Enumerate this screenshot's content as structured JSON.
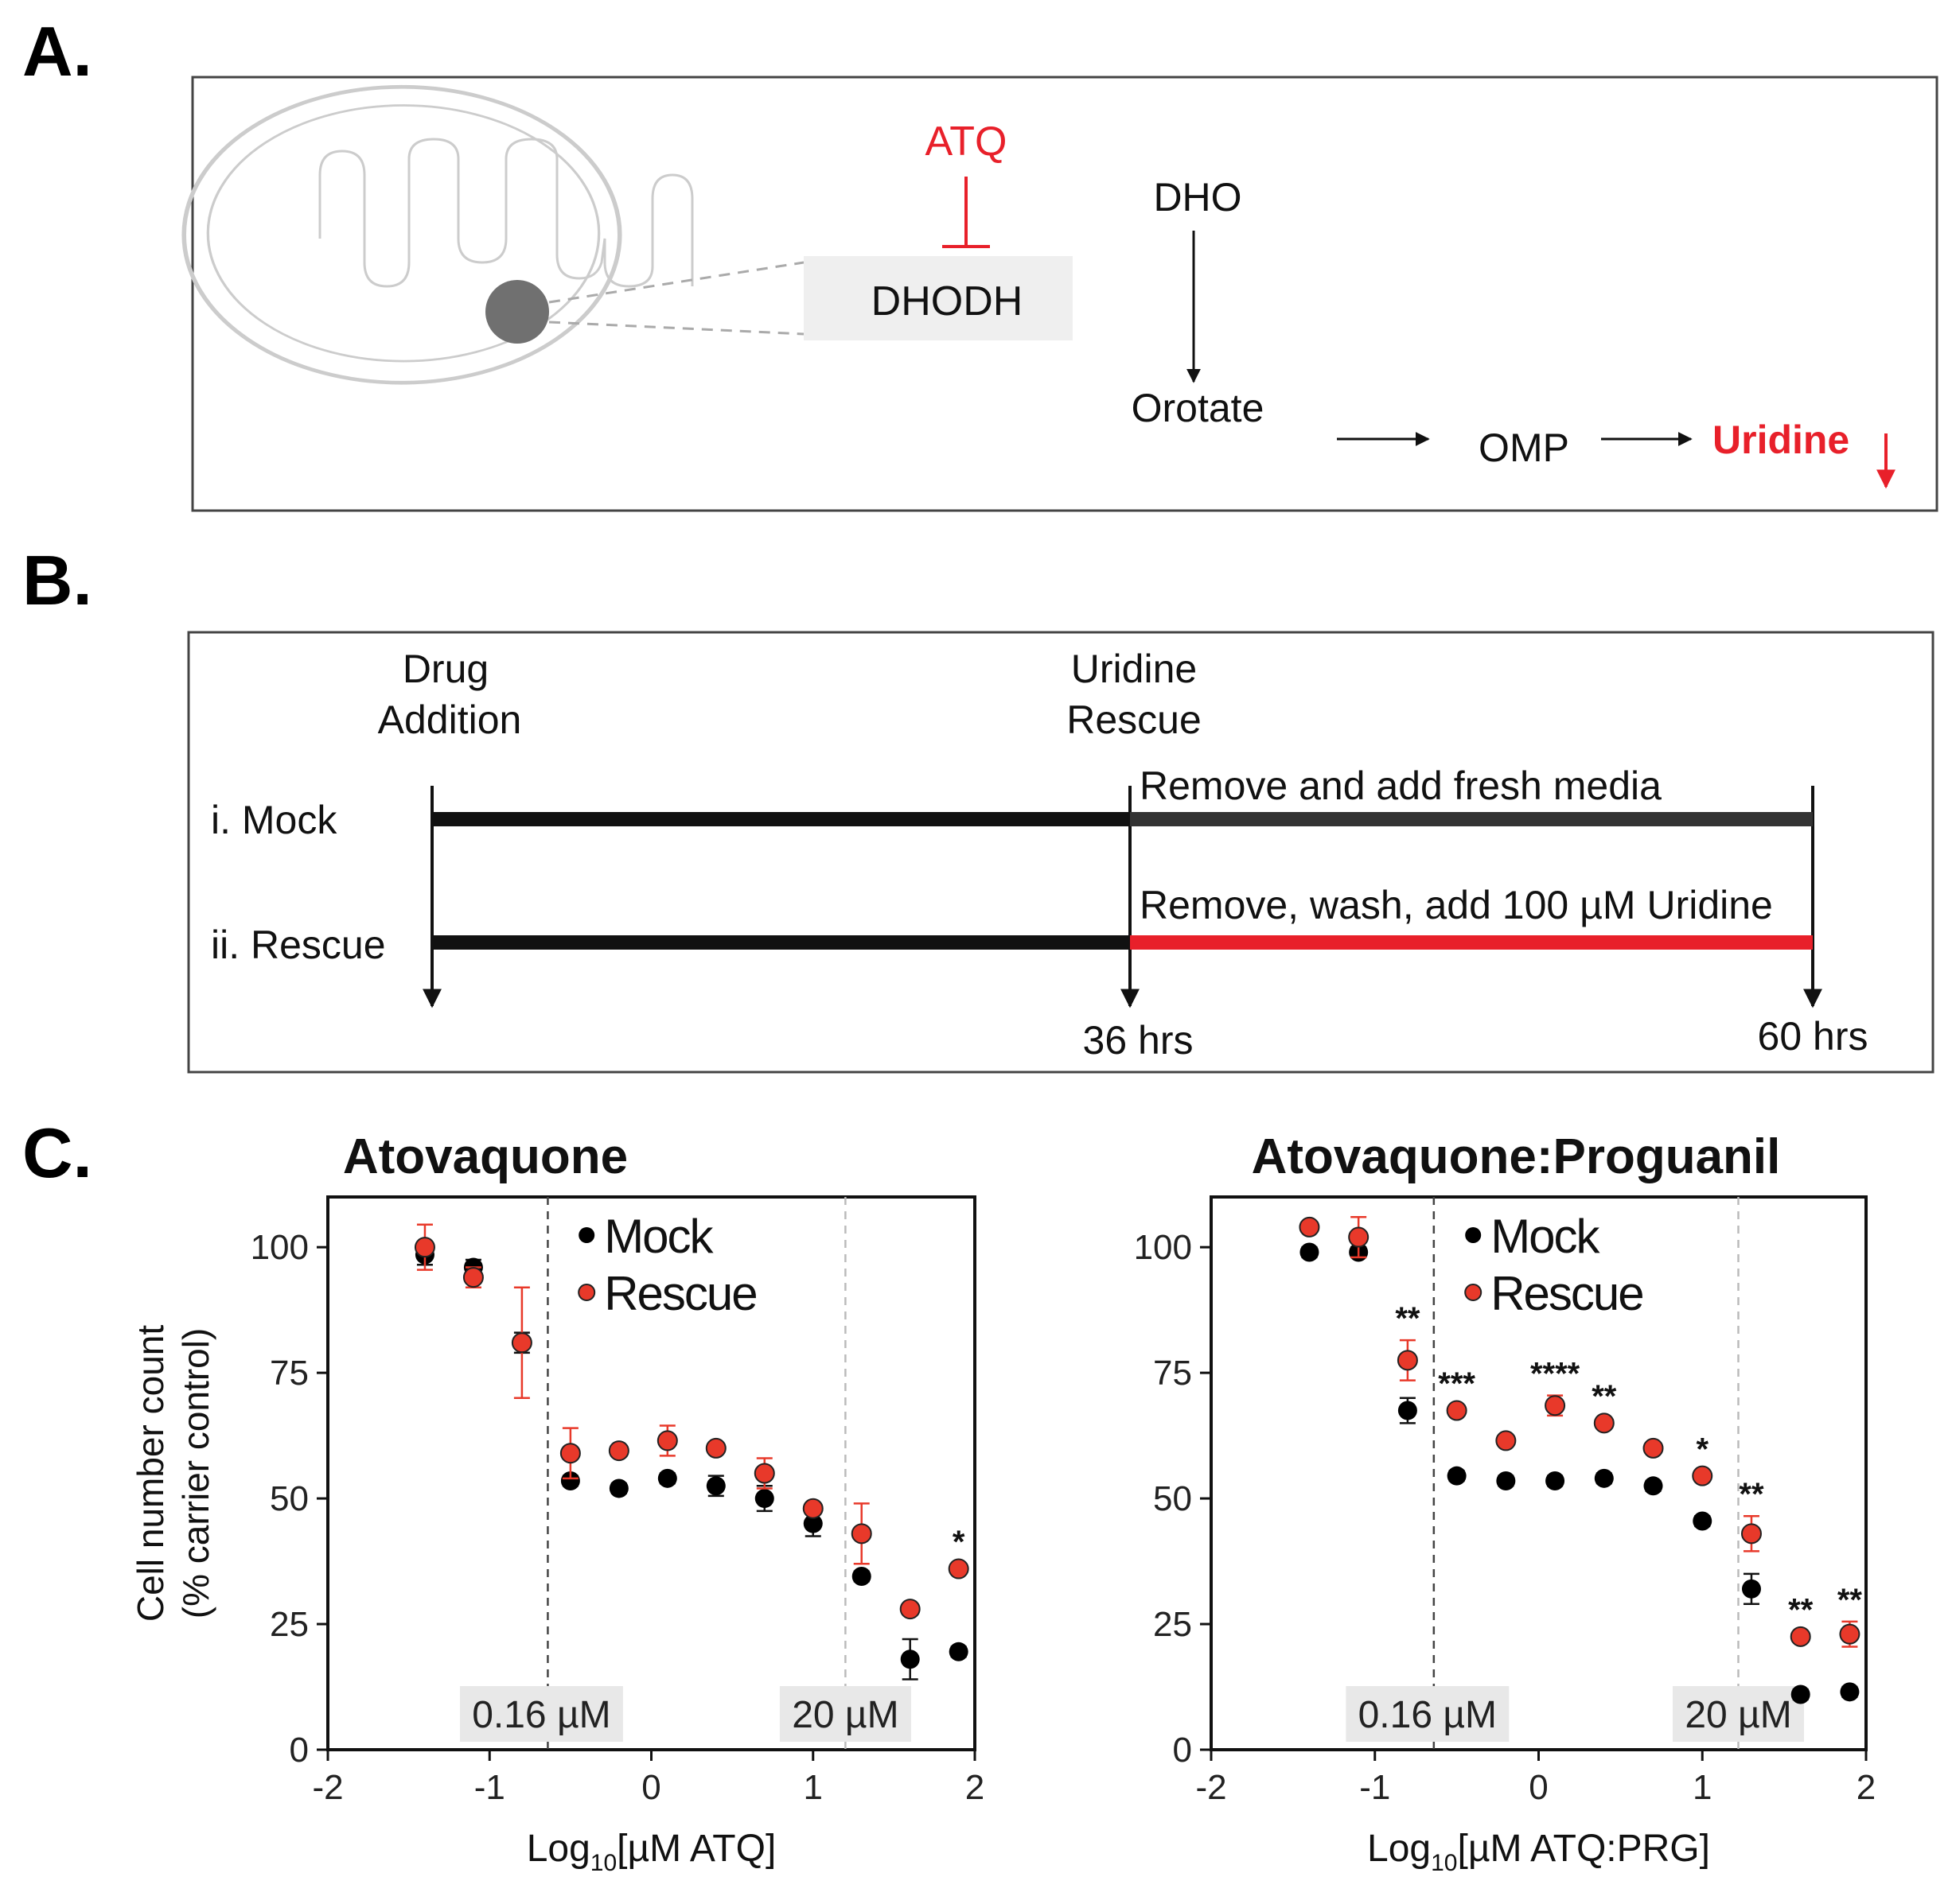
{
  "panels": {
    "a_label": "A.",
    "b_label": "B.",
    "c_label": "C."
  },
  "pathway": {
    "inhibitor": "ATQ",
    "enzyme": "DHODH",
    "substrate": "DHO",
    "product": "Orotate",
    "intermediate": "OMP",
    "end_product": "Uridine",
    "colors": {
      "inhibitor": "#e8202a",
      "end_product": "#e8202a",
      "enzyme_box": "#efefef",
      "mito_outline": "#c8c8c8",
      "mito_dot": "#707070"
    }
  },
  "timeline": {
    "drug_addition": [
      "Drug",
      "Addition"
    ],
    "uridine_rescue": [
      "Uridine",
      "Rescue"
    ],
    "mock_label": "i. Mock",
    "rescue_label": "ii. Rescue",
    "mock_text": "Remove and add fresh media",
    "rescue_text": "Remove, wash, add 100 µM Uridine",
    "t1": "36 hrs",
    "t2": "60 hrs",
    "colors": {
      "mock_bar": "#333333",
      "rescue_bar": "#e8202a"
    }
  },
  "chart_data": [
    {
      "type": "scatter",
      "title": "Atovaquone",
      "xlabel_prefix": "Log",
      "xlabel_sub": "10",
      "xlabel_suffix": "[µM ATQ]",
      "ylabel": [
        "Cell number count",
        "(% carrier control)"
      ],
      "xlim": [
        -2,
        2
      ],
      "ylim": [
        0,
        110
      ],
      "xticks": [
        -2,
        -1,
        0,
        1,
        2
      ],
      "yticks": [
        0,
        25,
        50,
        75,
        100
      ],
      "vlines": [
        {
          "x": -0.64,
          "label": "0.16 µM",
          "style": "dark"
        },
        {
          "x": 1.2,
          "label": "20 µM",
          "style": "light"
        }
      ],
      "legend": {
        "position": "top-right"
      },
      "series": [
        {
          "name": "Mock",
          "color": "#000000",
          "points": [
            [
              -1.4,
              98.5,
              2
            ],
            [
              -1.1,
              96,
              1.5
            ],
            [
              -0.8,
              81,
              2
            ],
            [
              -0.5,
              53.5,
              1
            ],
            [
              -0.2,
              52,
              1
            ],
            [
              0.1,
              54,
              1
            ],
            [
              0.4,
              52.5,
              2
            ],
            [
              0.7,
              50,
              2.5
            ],
            [
              1.0,
              45,
              2.5
            ],
            [
              1.3,
              34.5,
              1
            ],
            [
              1.6,
              18,
              4
            ],
            [
              1.9,
              19.5,
              1
            ]
          ]
        },
        {
          "name": "Rescue",
          "color": "#e8392a",
          "points": [
            [
              -1.4,
              100,
              4.5
            ],
            [
              -1.1,
              94,
              2
            ],
            [
              -0.8,
              81,
              11
            ],
            [
              -0.5,
              59,
              5
            ],
            [
              -0.2,
              59.5,
              1
            ],
            [
              0.1,
              61.5,
              3
            ],
            [
              0.4,
              60,
              1
            ],
            [
              0.7,
              55,
              3
            ],
            [
              1.0,
              48,
              1
            ],
            [
              1.3,
              43,
              6
            ],
            [
              1.6,
              28,
              1
            ],
            [
              1.9,
              36,
              1
            ]
          ]
        }
      ],
      "annotations": [
        {
          "x": 1.9,
          "text": "*"
        }
      ]
    },
    {
      "type": "scatter",
      "title": "Atovaquone:Proguanil",
      "xlabel_prefix": "Log",
      "xlabel_sub": "10",
      "xlabel_suffix": "[µM ATQ:PRG]",
      "xlim": [
        -2,
        2
      ],
      "ylim": [
        0,
        110
      ],
      "xticks": [
        -2,
        -1,
        0,
        1,
        2
      ],
      "yticks": [
        0,
        25,
        50,
        75,
        100
      ],
      "vlines": [
        {
          "x": -0.64,
          "label": "0.16 µM",
          "style": "dark"
        },
        {
          "x": 1.22,
          "label": "20 µM",
          "style": "light"
        }
      ],
      "legend": {
        "position": "top-right"
      },
      "series": [
        {
          "name": "Mock",
          "color": "#000000",
          "points": [
            [
              -1.4,
              99,
              1
            ],
            [
              -1.1,
              99,
              1
            ],
            [
              -0.8,
              67.5,
              2.5
            ],
            [
              -0.5,
              54.5,
              1
            ],
            [
              -0.2,
              53.5,
              1
            ],
            [
              0.1,
              53.5,
              1
            ],
            [
              0.4,
              54,
              1
            ],
            [
              0.7,
              52.5,
              1
            ],
            [
              1.0,
              45.5,
              1
            ],
            [
              1.3,
              32,
              3
            ],
            [
              1.6,
              11,
              1
            ],
            [
              1.9,
              11.5,
              1
            ]
          ]
        },
        {
          "name": "Rescue",
          "color": "#e8392a",
          "points": [
            [
              -1.4,
              104,
              1
            ],
            [
              -1.1,
              102,
              4
            ],
            [
              -0.8,
              77.5,
              4
            ],
            [
              -0.5,
              67.5,
              1
            ],
            [
              -0.2,
              61.5,
              1
            ],
            [
              0.1,
              68.5,
              2
            ],
            [
              0.4,
              65,
              1
            ],
            [
              0.7,
              60,
              1
            ],
            [
              1.0,
              54.5,
              1
            ],
            [
              1.3,
              43,
              3.5
            ],
            [
              1.6,
              22.5,
              1
            ],
            [
              1.9,
              23,
              2.5
            ]
          ]
        }
      ],
      "annotations": [
        {
          "x": -0.8,
          "text": "**"
        },
        {
          "x": -0.5,
          "text": "***"
        },
        {
          "x": 0.1,
          "text": "****"
        },
        {
          "x": 0.4,
          "text": "**"
        },
        {
          "x": 1.0,
          "text": "*"
        },
        {
          "x": 1.3,
          "text": "**"
        },
        {
          "x": 1.6,
          "text": "**"
        },
        {
          "x": 1.9,
          "text": "**"
        }
      ]
    }
  ]
}
